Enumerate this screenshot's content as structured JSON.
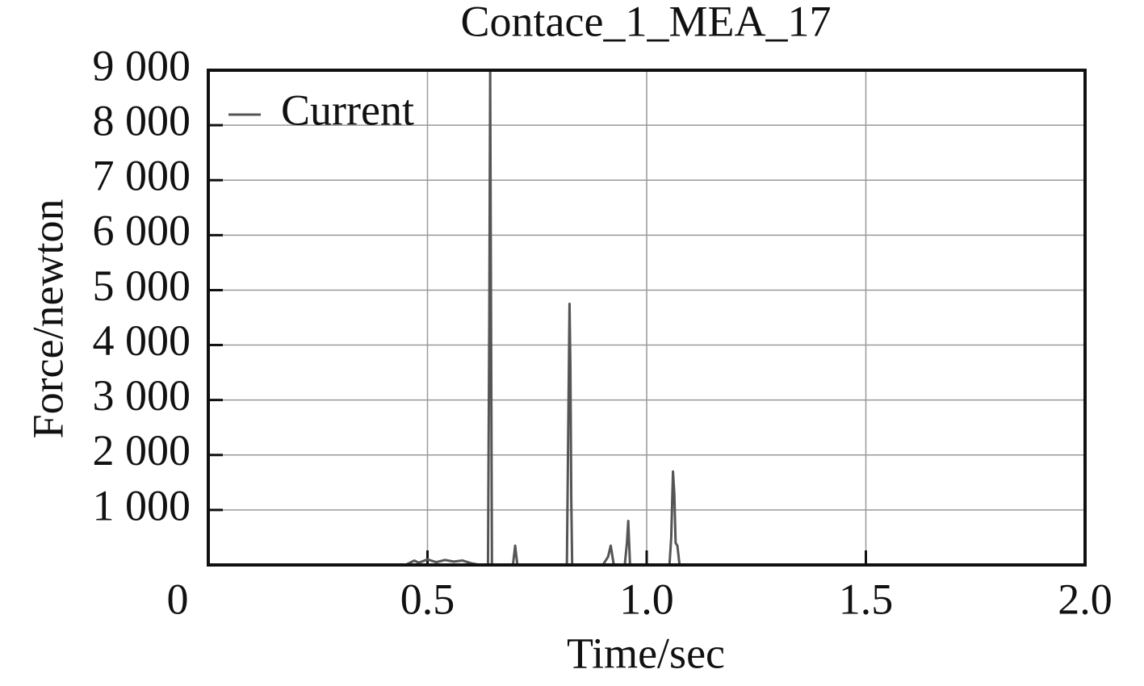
{
  "chart_data": {
    "type": "line",
    "title": "Contace_1_MEA_17",
    "x_label": "Time/sec",
    "y_label": "Force/newton",
    "x": [
      0,
      0.45,
      0.47,
      0.48,
      0.5,
      0.52,
      0.54,
      0.56,
      0.58,
      0.6,
      0.62,
      0.638,
      0.641,
      0.643,
      0.645,
      0.647,
      0.66,
      0.695,
      0.7,
      0.705,
      0.72,
      0.8,
      0.818,
      0.821,
      0.824,
      0.826,
      0.828,
      0.83,
      0.834,
      0.9,
      0.912,
      0.918,
      0.925,
      0.95,
      0.955,
      0.958,
      0.962,
      0.97,
      1.04,
      1.052,
      1.056,
      1.06,
      1.063,
      1.066,
      1.07,
      1.075,
      1.08,
      2.0
    ],
    "series": [
      {
        "name": "Current",
        "color": "#555555",
        "values": [
          0,
          0,
          80,
          40,
          100,
          50,
          90,
          60,
          80,
          30,
          0,
          0,
          4500,
          9000,
          4500,
          0,
          0,
          0,
          350,
          0,
          0,
          0,
          0,
          2400,
          4750,
          3600,
          1200,
          0,
          0,
          0,
          150,
          350,
          0,
          0,
          400,
          800,
          0,
          0,
          0,
          0,
          500,
          1700,
          1300,
          400,
          350,
          0,
          0,
          0
        ]
      }
    ],
    "xlim": [
      0,
      2
    ],
    "xticks": [
      0,
      0.5,
      {
        "value": 1,
        "label": "1.0"
      },
      1.5,
      {
        "value": 2,
        "label": "2.0"
      }
    ],
    "ylim": [
      0,
      9000
    ],
    "yticks": [
      {
        "value": 1000,
        "label": "1 000"
      },
      {
        "value": 2000,
        "label": "2 000"
      },
      {
        "value": 3000,
        "label": "3 000"
      },
      {
        "value": 4000,
        "label": "4 000"
      },
      {
        "value": 5000,
        "label": "5 000"
      },
      {
        "value": 6000,
        "label": "6 000"
      },
      {
        "value": 7000,
        "label": "7 000"
      },
      {
        "value": 8000,
        "label": "8 000"
      },
      {
        "value": 9000,
        "label": "9 000"
      }
    ],
    "grid": true,
    "legend": "upper left"
  }
}
